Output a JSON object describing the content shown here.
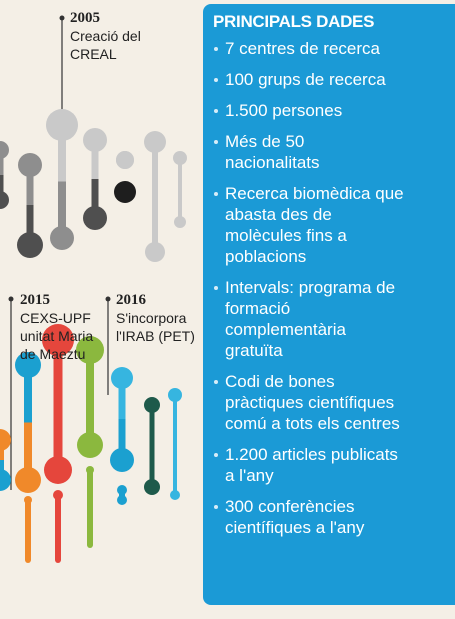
{
  "timeline": [
    {
      "year": "2005",
      "lines": [
        "Creació del",
        "CREAL"
      ]
    },
    {
      "year": "2015",
      "lines": [
        "CEXS-UPF",
        "unitat Maria",
        "de Maeztu"
      ]
    },
    {
      "year": "2016",
      "lines": [
        "S'incorpora",
        "l'IRAB (PET)"
      ]
    }
  ],
  "panel": {
    "title": "PRINCIPALS DADES",
    "items": [
      [
        "7 centres de recerca"
      ],
      [
        "100 grups de recerca"
      ],
      [
        "1.500 persones"
      ],
      [
        "Més de 50",
        "nacionalitats"
      ],
      [
        "Recerca biomèdica que",
        "abasta des de",
        "molècules fins a",
        "poblacions"
      ],
      [
        "Intervals: programa de",
        "formació",
        "complementària",
        "gratuïta"
      ],
      [
        "Codi de bones",
        "pràctiques científiques",
        "comú a tots els centres"
      ],
      [
        "1.200 articles publicats",
        "a l'any"
      ],
      [
        "300 conferències",
        "científiques a l'any"
      ]
    ]
  }
}
